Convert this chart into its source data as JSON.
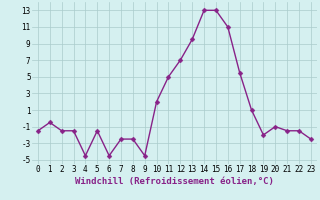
{
  "x": [
    0,
    1,
    2,
    3,
    4,
    5,
    6,
    7,
    8,
    9,
    10,
    11,
    12,
    13,
    14,
    15,
    16,
    17,
    18,
    19,
    20,
    21,
    22,
    23
  ],
  "y": [
    -1.5,
    -0.5,
    -1.5,
    -1.5,
    -4.5,
    -1.5,
    -4.5,
    -2.5,
    -2.5,
    -4.5,
    2,
    5,
    7,
    9.5,
    13,
    13,
    11,
    5.5,
    1,
    -2,
    -1,
    -1.5,
    -1.5,
    -2.5
  ],
  "line_color": "#882288",
  "marker": "D",
  "marker_size": 2.5,
  "linewidth": 1.0,
  "xlabel": "Windchill (Refroidissement éolien,°C)",
  "xlabel_fontsize": 6.5,
  "xlim": [
    -0.5,
    23.5
  ],
  "ylim": [
    -5.5,
    14
  ],
  "yticks": [
    -5,
    -3,
    -1,
    1,
    3,
    5,
    7,
    9,
    11,
    13
  ],
  "xticks": [
    0,
    1,
    2,
    3,
    4,
    5,
    6,
    7,
    8,
    9,
    10,
    11,
    12,
    13,
    14,
    15,
    16,
    17,
    18,
    19,
    20,
    21,
    22,
    23
  ],
  "bg_color": "#d5f0f0",
  "grid_color": "#aacccc",
  "tick_fontsize": 5.5
}
